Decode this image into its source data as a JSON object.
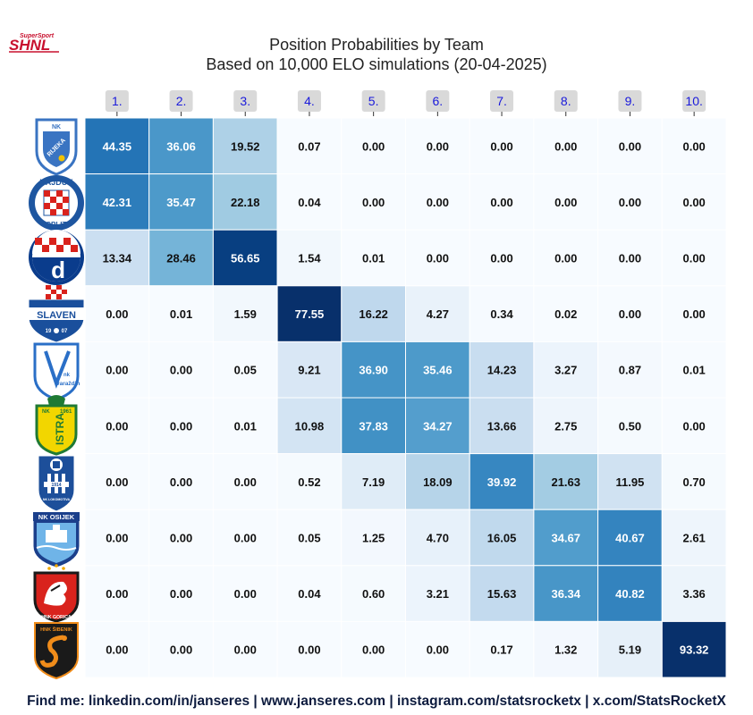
{
  "header": {
    "logo_main": "SHNL",
    "logo_sub": "SuperSport"
  },
  "chart_data": {
    "type": "heatmap",
    "title": "Position Probabilities by Team",
    "subtitle": "Based on 10,000 ELO simulations (20-04-2025)",
    "columns": [
      "1.",
      "2.",
      "3.",
      "4.",
      "5.",
      "6.",
      "7.",
      "8.",
      "9.",
      "10."
    ],
    "rows": [
      {
        "team": "NK Rijeka",
        "crest": "rijeka-crest",
        "values": [
          44.35,
          36.06,
          19.52,
          0.07,
          0.0,
          0.0,
          0.0,
          0.0,
          0.0,
          0.0
        ]
      },
      {
        "team": "Hajduk Split",
        "crest": "hajduk-crest",
        "values": [
          42.31,
          35.47,
          22.18,
          0.04,
          0.0,
          0.0,
          0.0,
          0.0,
          0.0,
          0.0
        ]
      },
      {
        "team": "Dinamo Zagreb",
        "crest": "dinamo-crest",
        "values": [
          13.34,
          28.46,
          56.65,
          1.54,
          0.01,
          0.0,
          0.0,
          0.0,
          0.0,
          0.0
        ]
      },
      {
        "team": "Slaven Belupo",
        "crest": "slaven-crest",
        "values": [
          0.0,
          0.01,
          1.59,
          77.55,
          16.22,
          4.27,
          0.34,
          0.02,
          0.0,
          0.0
        ]
      },
      {
        "team": "NK Varaždin",
        "crest": "varazdin-crest",
        "values": [
          0.0,
          0.0,
          0.05,
          9.21,
          36.9,
          35.46,
          14.23,
          3.27,
          0.87,
          0.01
        ]
      },
      {
        "team": "NK Istra 1961",
        "crest": "istra-crest",
        "values": [
          0.0,
          0.0,
          0.01,
          10.98,
          37.83,
          34.27,
          13.66,
          2.75,
          0.5,
          0.0
        ]
      },
      {
        "team": "NK Lokomotiva",
        "crest": "lokomotiva-crest",
        "values": [
          0.0,
          0.0,
          0.0,
          0.52,
          7.19,
          18.09,
          39.92,
          21.63,
          11.95,
          0.7
        ]
      },
      {
        "team": "NK Osijek",
        "crest": "osijek-crest",
        "values": [
          0.0,
          0.0,
          0.0,
          0.05,
          1.25,
          4.7,
          16.05,
          34.67,
          40.67,
          2.61
        ]
      },
      {
        "team": "HNK Gorica",
        "crest": "gorica-crest",
        "values": [
          0.0,
          0.0,
          0.0,
          0.04,
          0.6,
          3.21,
          15.63,
          36.34,
          40.82,
          3.36
        ]
      },
      {
        "team": "HNK Šibenik",
        "crest": "sibenik-crest",
        "values": [
          0.0,
          0.0,
          0.0,
          0.0,
          0.0,
          0.0,
          0.17,
          1.32,
          5.19,
          93.32
        ]
      }
    ],
    "colormap": "Blues",
    "value_format": "0.00",
    "crest_text": {
      "rijeka": "RIJEKA",
      "rijeka_nk": "NK",
      "hajduk_top": "HAJDUK",
      "hajduk_bottom": "SPLIT",
      "dinamo_letter": "d",
      "slaven": "SLAVEN",
      "slaven_year_left": "19",
      "slaven_year_right": "07",
      "varazdin_nk": "nk",
      "varazdin_name": "varaždin",
      "istra_top": "NK",
      "istra_year": "1961",
      "istra_name": "ISTRA",
      "lokomotiva_year": "1914",
      "lokomotiva_name": "NK LOKOMOTIVA",
      "osijek": "NK OSIJEK",
      "gorica": "HNK GORICA",
      "sibenik": "HNK ŠIBENIK"
    }
  },
  "footer": {
    "text": "Find me: linkedin.com/in/janseres | www.janseres.com | instagram.com/statsrocketx | x.com/StatsRocketX"
  }
}
